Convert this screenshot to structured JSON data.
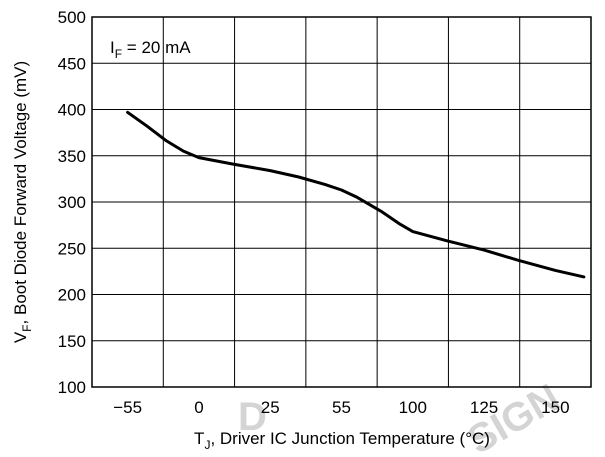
{
  "chart_data": {
    "type": "line",
    "xlabel": {
      "main": "T",
      "sub": "J",
      "rest": ", Driver IC Junction Temperature (°C)"
    },
    "ylabel": {
      "main": "V",
      "sub": "F",
      "rest": ", Boot Diode Forward Voltage (mV)"
    },
    "annotation": {
      "main": "I",
      "sub": "F",
      "rest": " = 20 mA"
    },
    "xticks": [
      "−55",
      "0",
      "25",
      "55",
      "100",
      "125",
      "150"
    ],
    "yticks": [
      100,
      150,
      200,
      250,
      300,
      350,
      400,
      450,
      500
    ],
    "ylim": [
      100,
      500
    ],
    "grid": true,
    "series": [
      {
        "color": "#000000",
        "points": [
          {
            "x": -55,
            "y": 397
          },
          {
            "x": -40,
            "y": 382
          },
          {
            "x": -25,
            "y": 366
          },
          {
            "x": -12,
            "y": 355
          },
          {
            "x": 0,
            "y": 348
          },
          {
            "x": 12,
            "y": 341
          },
          {
            "x": 25,
            "y": 334
          },
          {
            "x": 37,
            "y": 327
          },
          {
            "x": 48,
            "y": 319
          },
          {
            "x": 55,
            "y": 313
          },
          {
            "x": 65,
            "y": 305
          },
          {
            "x": 80,
            "y": 290
          },
          {
            "x": 92,
            "y": 276
          },
          {
            "x": 100,
            "y": 268
          },
          {
            "x": 112,
            "y": 258
          },
          {
            "x": 125,
            "y": 248
          },
          {
            "x": 137,
            "y": 237
          },
          {
            "x": 150,
            "y": 226
          },
          {
            "x": 160,
            "y": 219
          }
        ]
      }
    ]
  },
  "watermark": {
    "left_text": "D",
    "right_text": "SIGN"
  }
}
